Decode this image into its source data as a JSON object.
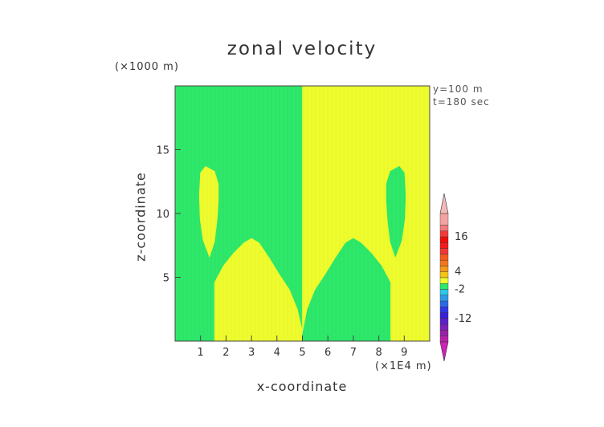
{
  "chart_data": {
    "type": "heatmap",
    "title": "zonal velocity",
    "xlabel": "x-coordinate",
    "ylabel": "z-coordinate",
    "x_unit": "(×1E4 m)",
    "z_unit": "(×1000 m)",
    "info": [
      "y=100 m",
      "t=180 sec"
    ],
    "xlim": [
      0,
      10
    ],
    "ylim": [
      0,
      20
    ],
    "x_ticks": [
      1,
      2,
      3,
      4,
      5,
      6,
      7,
      8,
      9
    ],
    "y_ticks": [
      5,
      10,
      15
    ],
    "regions": [
      {
        "name": "left background",
        "color": "#2ee86a",
        "polygon": [
          [
            0,
            0
          ],
          [
            1.55,
            0
          ],
          [
            1.55,
            4.6
          ],
          [
            1.9,
            5.9
          ],
          [
            2.3,
            6.9
          ],
          [
            2.7,
            7.7
          ],
          [
            3.0,
            8.05
          ],
          [
            3.3,
            7.7
          ],
          [
            3.7,
            6.5
          ],
          [
            4.1,
            5.2
          ],
          [
            4.5,
            4.0
          ],
          [
            4.8,
            2.5
          ],
          [
            5.0,
            0.8
          ],
          [
            5.0,
            20
          ],
          [
            0,
            20
          ]
        ]
      },
      {
        "name": "left lower tongue",
        "color": "#eefc2e",
        "polygon": [
          [
            1.55,
            0
          ],
          [
            5.0,
            0
          ],
          [
            5.0,
            0.8
          ],
          [
            4.8,
            2.5
          ],
          [
            4.5,
            4.0
          ],
          [
            4.1,
            5.2
          ],
          [
            3.7,
            6.5
          ],
          [
            3.3,
            7.7
          ],
          [
            3.0,
            8.05
          ],
          [
            2.7,
            7.7
          ],
          [
            2.3,
            6.9
          ],
          [
            1.9,
            5.9
          ],
          [
            1.55,
            4.6
          ]
        ]
      },
      {
        "name": "left upper lobe",
        "color": "#eefc2e",
        "polygon": [
          [
            1.35,
            6.6
          ],
          [
            1.55,
            7.8
          ],
          [
            1.65,
            9.5
          ],
          [
            1.7,
            11.0
          ],
          [
            1.7,
            12.3
          ],
          [
            1.55,
            13.3
          ],
          [
            1.2,
            13.7
          ],
          [
            1.0,
            13.2
          ],
          [
            0.95,
            11.5
          ],
          [
            0.98,
            9.6
          ],
          [
            1.1,
            7.9
          ]
        ]
      },
      {
        "name": "right background",
        "color": "#eefc2e",
        "polygon": [
          [
            5.0,
            0.8
          ],
          [
            5.0,
            20
          ],
          [
            10,
            20
          ],
          [
            10,
            0
          ],
          [
            8.45,
            0
          ],
          [
            8.45,
            4.6
          ],
          [
            8.1,
            5.9
          ],
          [
            7.7,
            6.9
          ],
          [
            7.3,
            7.7
          ],
          [
            7.0,
            8.05
          ],
          [
            6.7,
            7.7
          ],
          [
            6.3,
            6.5
          ],
          [
            5.9,
            5.2
          ],
          [
            5.5,
            4.0
          ],
          [
            5.2,
            2.5
          ]
        ]
      },
      {
        "name": "right lower tongue",
        "color": "#2ee86a",
        "polygon": [
          [
            5.0,
            0.5
          ],
          [
            5.2,
            2.5
          ],
          [
            5.5,
            4.0
          ],
          [
            5.9,
            5.2
          ],
          [
            6.3,
            6.5
          ],
          [
            6.7,
            7.7
          ],
          [
            7.0,
            8.05
          ],
          [
            7.3,
            7.7
          ],
          [
            7.7,
            6.9
          ],
          [
            8.1,
            5.9
          ],
          [
            8.45,
            4.6
          ],
          [
            8.45,
            0
          ],
          [
            5.0,
            0
          ]
        ]
      },
      {
        "name": "right upper lobe",
        "color": "#2ee86a",
        "polygon": [
          [
            8.65,
            6.6
          ],
          [
            8.45,
            7.8
          ],
          [
            8.35,
            9.5
          ],
          [
            8.3,
            11.0
          ],
          [
            8.3,
            12.3
          ],
          [
            8.45,
            13.3
          ],
          [
            8.8,
            13.7
          ],
          [
            9.0,
            13.2
          ],
          [
            9.05,
            11.5
          ],
          [
            9.02,
            9.6
          ],
          [
            8.9,
            7.9
          ]
        ]
      }
    ],
    "colorbar": {
      "labels": [
        {
          "text": "16",
          "value": 16
        },
        {
          "text": "4",
          "value": 4
        },
        {
          "text": "-2",
          "value": -2
        },
        {
          "text": "-12",
          "value": -12
        }
      ],
      "range": [
        -20,
        24
      ],
      "levels": [
        {
          "from": 20,
          "to": 24,
          "color": "#f4a3a3"
        },
        {
          "from": 18,
          "to": 20,
          "color": "#f47b7b"
        },
        {
          "from": 16,
          "to": 18,
          "color": "#f43a3a"
        },
        {
          "from": 14,
          "to": 16,
          "color": "#f40c0c"
        },
        {
          "from": 12,
          "to": 14,
          "color": "#f41c1c"
        },
        {
          "from": 10,
          "to": 12,
          "color": "#f43636"
        },
        {
          "from": 8,
          "to": 10,
          "color": "#f45a1c"
        },
        {
          "from": 6,
          "to": 8,
          "color": "#f4761c"
        },
        {
          "from": 4,
          "to": 6,
          "color": "#f49a18"
        },
        {
          "from": 2,
          "to": 4,
          "color": "#f4c414"
        },
        {
          "from": 0,
          "to": 2,
          "color": "#eefc2e"
        },
        {
          "from": -2,
          "to": 0,
          "color": "#2ee86a"
        },
        {
          "from": -4,
          "to": -2,
          "color": "#2ec8e8"
        },
        {
          "from": -6,
          "to": -4,
          "color": "#2e9ae8"
        },
        {
          "from": -8,
          "to": -6,
          "color": "#2e6ae8"
        },
        {
          "from": -10,
          "to": -8,
          "color": "#2e3ae8"
        },
        {
          "from": -12,
          "to": -10,
          "color": "#3a20d8"
        },
        {
          "from": -14,
          "to": -12,
          "color": "#5a20c8"
        },
        {
          "from": -16,
          "to": -14,
          "color": "#7a20b8"
        },
        {
          "from": -18,
          "to": -16,
          "color": "#9a20a8"
        },
        {
          "from": -20,
          "to": -18,
          "color": "#b820a8"
        }
      ],
      "top_arrow_color": "#f4b8b8",
      "bottom_arrow_color": "#d020b8"
    }
  }
}
